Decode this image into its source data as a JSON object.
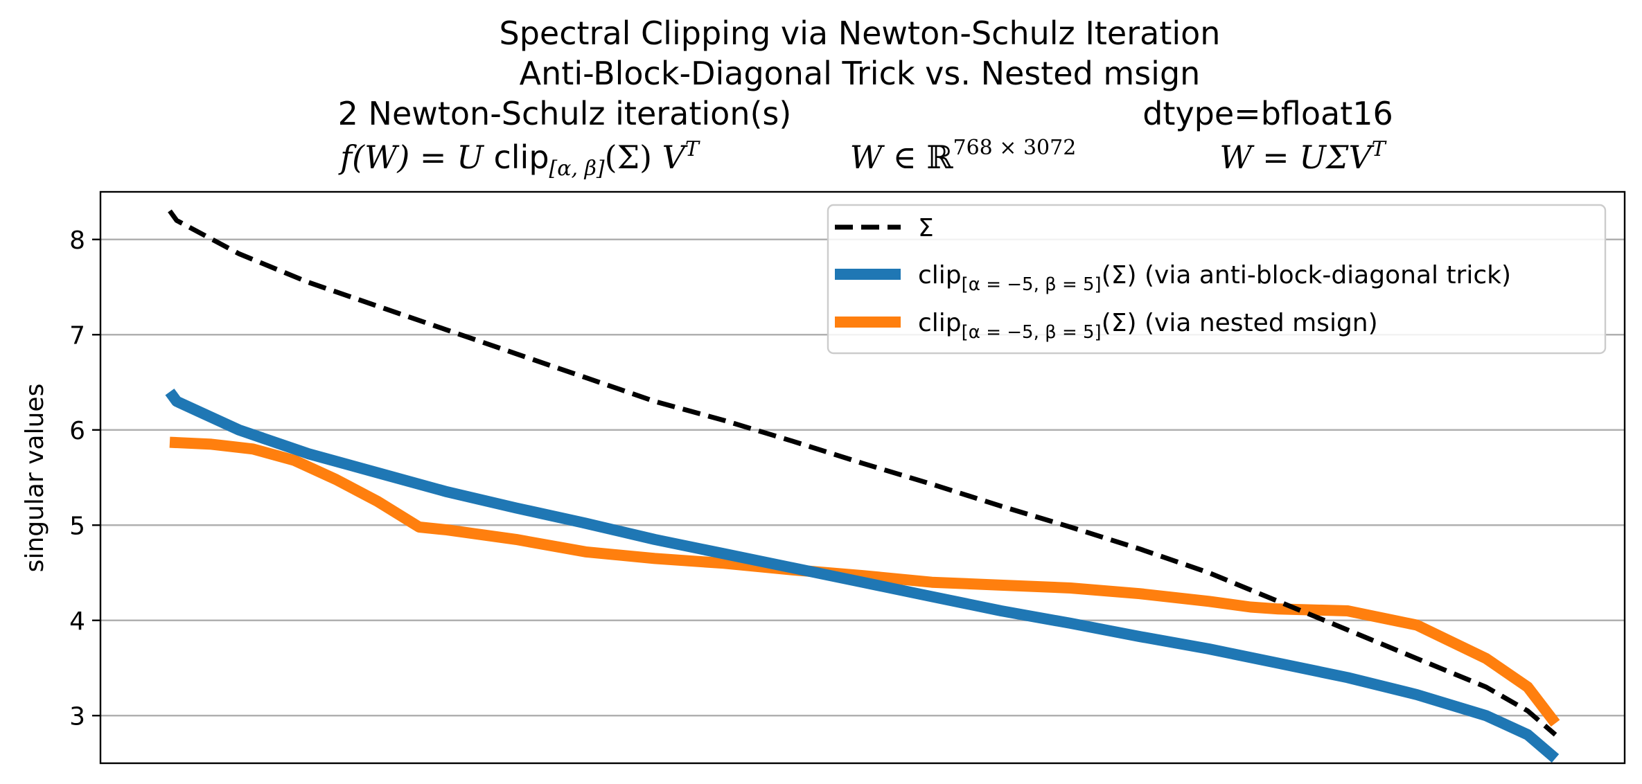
{
  "chart_data": {
    "type": "line",
    "title_lines": [
      "Spectral Clipping via Newton-Schulz Iteration",
      "Anti-Block-Diagonal Trick vs. Nested msign"
    ],
    "subtitle_left": "2 Newton-Schulz iteration(s)",
    "subtitle_right": "dtype=bfloat16",
    "formula_left": "f(W) = U clip[α,β](Σ) Vᵀ",
    "formula_center": "W ∈ ℝ768 × 3072",
    "formula_right": "W = UΣVᵀ",
    "ylabel": "singular values",
    "xlabel": "",
    "ylim": [
      2.5,
      8.5
    ],
    "xlim": [
      -0.05,
      1.05
    ],
    "yticks": [
      3,
      4,
      5,
      6,
      7,
      8
    ],
    "grid": "y",
    "legend_position": "top-right",
    "series": [
      {
        "name": "Σ",
        "style": "dashed",
        "color": "#000000",
        "x": [
          0,
          0.005,
          0.05,
          0.1,
          0.15,
          0.2,
          0.25,
          0.3,
          0.35,
          0.4,
          0.45,
          0.5,
          0.55,
          0.6,
          0.65,
          0.7,
          0.75,
          0.8,
          0.85,
          0.9,
          0.95,
          0.98,
          1.0
        ],
        "values": [
          8.3,
          8.2,
          7.85,
          7.55,
          7.3,
          7.05,
          6.8,
          6.55,
          6.3,
          6.1,
          5.88,
          5.65,
          5.43,
          5.2,
          4.98,
          4.75,
          4.5,
          4.2,
          3.9,
          3.6,
          3.3,
          3.05,
          2.8
        ]
      },
      {
        "name": "clip[α = −5, β = 5](Σ) (via anti-block-diagonal trick)",
        "style": "solid",
        "color": "#1f77b4",
        "x": [
          0,
          0.005,
          0.02,
          0.05,
          0.1,
          0.15,
          0.2,
          0.25,
          0.3,
          0.35,
          0.4,
          0.45,
          0.5,
          0.55,
          0.6,
          0.65,
          0.7,
          0.75,
          0.8,
          0.85,
          0.9,
          0.95,
          0.98,
          1.0
        ],
        "values": [
          6.4,
          6.3,
          6.2,
          6.0,
          5.75,
          5.55,
          5.35,
          5.18,
          5.02,
          4.85,
          4.7,
          4.55,
          4.4,
          4.25,
          4.1,
          3.97,
          3.83,
          3.7,
          3.55,
          3.4,
          3.22,
          3.0,
          2.8,
          2.55
        ]
      },
      {
        "name": "clip[α = −5, β = 5](Σ) (via nested msign)",
        "style": "solid",
        "color": "#ff7f0e",
        "x": [
          0,
          0.03,
          0.06,
          0.09,
          0.12,
          0.15,
          0.18,
          0.2,
          0.25,
          0.3,
          0.35,
          0.4,
          0.45,
          0.5,
          0.55,
          0.6,
          0.65,
          0.7,
          0.75,
          0.78,
          0.8,
          0.85,
          0.9,
          0.95,
          0.98,
          1.0
        ],
        "values": [
          5.87,
          5.85,
          5.8,
          5.68,
          5.48,
          5.25,
          4.98,
          4.95,
          4.85,
          4.72,
          4.65,
          4.6,
          4.53,
          4.47,
          4.4,
          4.37,
          4.34,
          4.28,
          4.2,
          4.14,
          4.12,
          4.1,
          3.95,
          3.6,
          3.3,
          2.92
        ]
      }
    ]
  }
}
